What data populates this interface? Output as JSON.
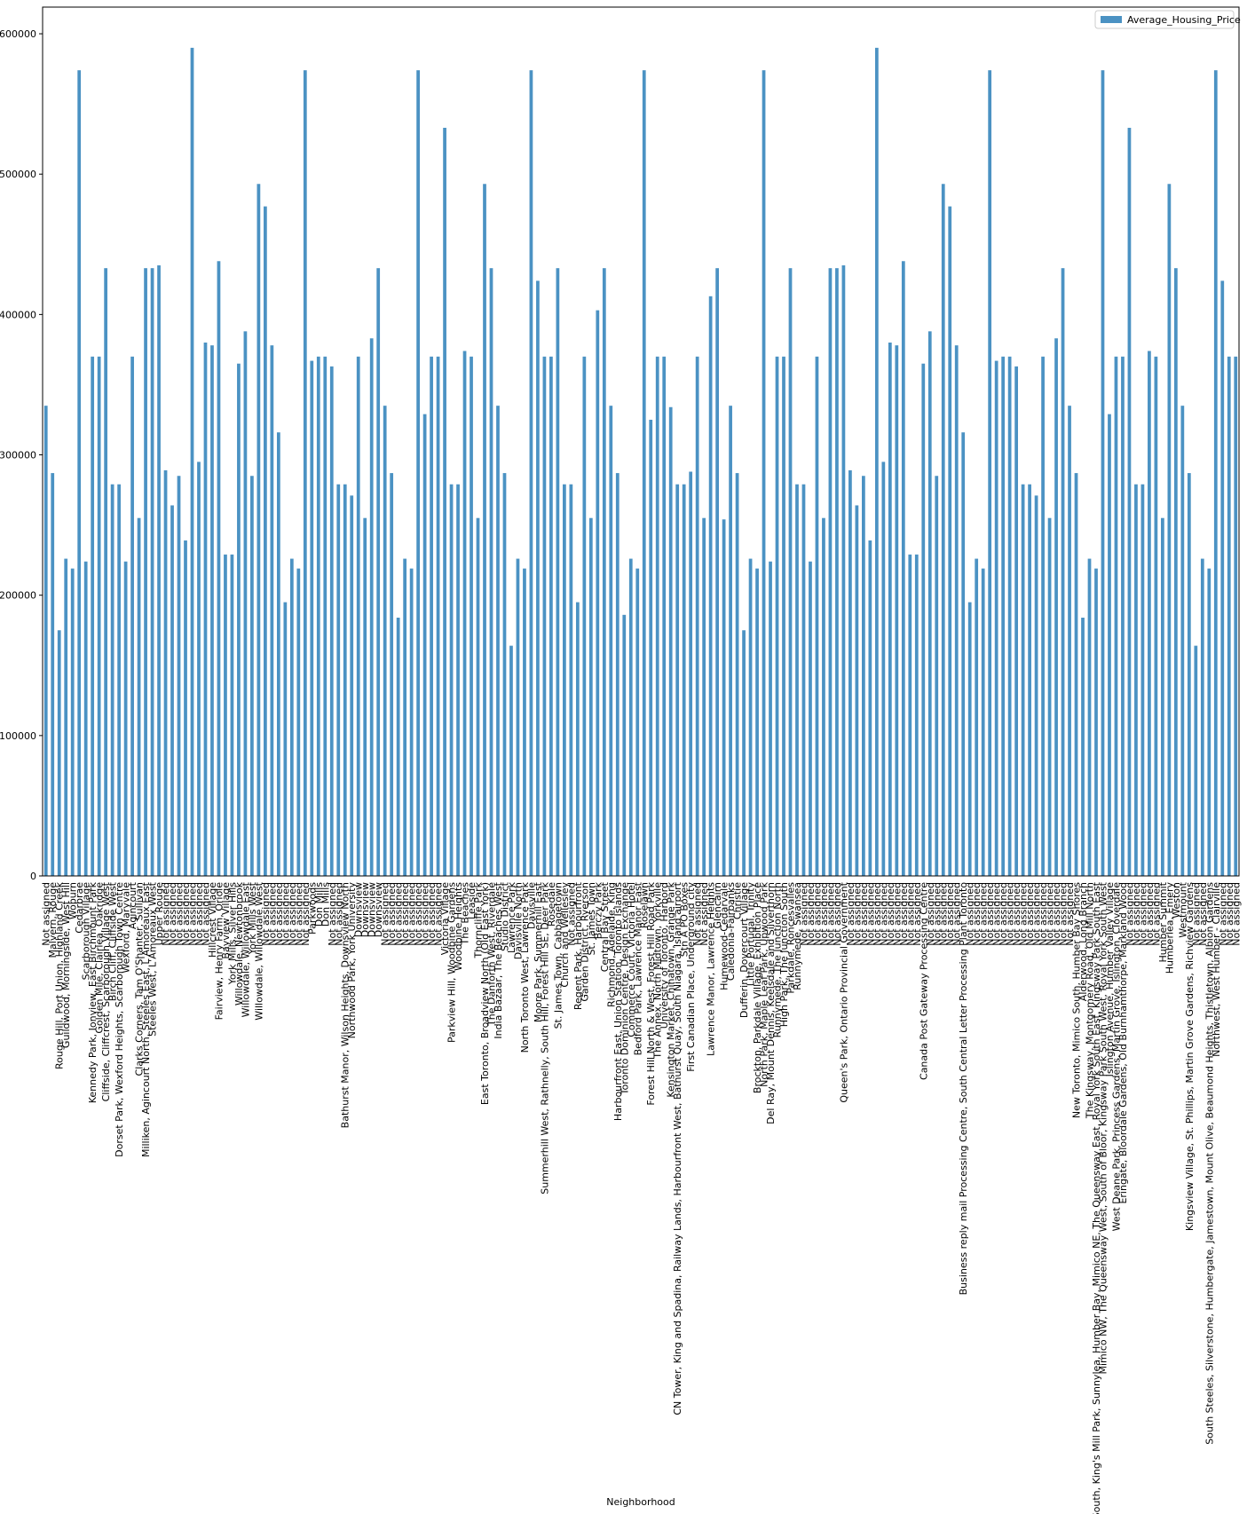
{
  "chart_data": {
    "type": "bar",
    "xlabel": "Neighborhood",
    "legend": "upper right",
    "series": [
      {
        "name": "Average_Housing_Price",
        "color": "#4b92c3",
        "values": [
          335000,
          287000,
          175000,
          226000,
          219000,
          574000,
          224000,
          370000,
          370000,
          433000,
          279000,
          279000,
          224000,
          370000,
          255000,
          433000,
          433000,
          435000,
          289000,
          264000,
          285000,
          239000,
          590000,
          295000,
          380000,
          378000,
          438000,
          229000,
          229000,
          365000,
          388000,
          285000,
          493000,
          477000,
          378000,
          316000,
          195000,
          226000,
          219000,
          574000,
          367000,
          370000,
          370000,
          363000,
          279000,
          279000,
          271000,
          370000,
          255000,
          383000,
          433000,
          335000,
          287000,
          184000,
          226000,
          219000,
          574000,
          329000,
          370000,
          370000,
          533000,
          279000,
          279000,
          374000,
          370000,
          255000,
          493000,
          433000,
          335000,
          287000,
          164000,
          226000,
          219000,
          574000,
          424000,
          370000,
          370000,
          433000,
          279000,
          279000,
          195000,
          370000,
          255000,
          403000,
          433000,
          335000,
          287000,
          186000,
          226000,
          219000,
          574000,
          325000,
          370000,
          370000,
          334000,
          279000,
          279000,
          288000,
          370000,
          255000,
          413000,
          433000,
          254000,
          335000,
          287000,
          175000,
          226000,
          219000,
          574000,
          224000,
          370000,
          370000,
          433000,
          279000,
          279000,
          224000,
          370000,
          255000,
          433000,
          433000,
          435000,
          289000,
          264000,
          285000,
          239000,
          590000,
          295000,
          380000,
          378000,
          438000,
          229000,
          229000,
          365000,
          388000,
          285000,
          493000,
          477000,
          378000,
          316000,
          195000,
          226000,
          219000,
          574000,
          367000,
          370000,
          370000,
          363000,
          279000,
          279000,
          271000,
          370000,
          255000,
          383000,
          433000,
          335000,
          287000,
          184000,
          226000,
          219000,
          574000,
          329000,
          370000,
          370000,
          533000,
          279000,
          279000,
          374000,
          370000,
          255000,
          493000,
          433000,
          335000,
          287000,
          164000,
          226000,
          219000,
          574000,
          424000,
          370000,
          370000
        ]
      }
    ],
    "categories": [
      "Not assigned",
      "Malvern, Rouge",
      "Rouge Hill, Port Union, Highland Creek",
      "Guildwood, Morningside, West Hill",
      "Woburn",
      "Cedarbrae",
      "Scarborough Village",
      "Kennedy Park, Ionview, East Birchmount Park",
      "Golden Mile, Clairlea, Oakridge",
      "Cliffside, Cliffcrest, Scarborough Village West",
      "Birch Cliff, Cliffside West",
      "Dorset Park, Wexford Heights, Scarborough Town Centre",
      "Wexford, Maryvale",
      "Agincourt",
      "Clarks Corners, Tam O'Shanter, Sullivan",
      "Milliken, Agincourt North, Steeles East, L'Amoreaux East",
      "Steeles West, L'Amoreaux West",
      "Upper Rouge",
      "Not assigned",
      "Not assigned",
      "Not assigned",
      "Not assigned",
      "Not assigned",
      "Not assigned",
      "Not assigned",
      "Hillcrest Village",
      "Fairview, Henry Farm, Oriole",
      "Bayview Village",
      "York Mills, Silver Hills",
      "Willowdale, Newtonbrook",
      "Willowdale, Willowdale East",
      "York Mills West",
      "Willowdale, Willowdale West",
      "Not assigned",
      "Not assigned",
      "Not assigned",
      "Not assigned",
      "Not assigned",
      "Not assigned",
      "Not assigned",
      "Parkwoods",
      "Don Mills",
      "Don Mills",
      "Not assigned",
      "Not assigned",
      "Bathurst Manor, Wilson Heights, Downsview North",
      "Northwood Park, York University",
      "Downsview",
      "Downsview",
      "Downsview",
      "Downsview",
      "Not assigned",
      "Not assigned",
      "Not assigned",
      "Not assigned",
      "Not assigned",
      "Not assigned",
      "Not assigned",
      "Not assigned",
      "Not assigned",
      "Victoria Village",
      "Parkview Hill, Woodbine Gardens",
      "Woodbine Heights",
      "The Beaches",
      "Leaside",
      "Thorncliffe Park",
      "East Toronto, Broadview North (Old East York)",
      "The Danforth West, Riverdale",
      "India Bazaar, The Beaches West",
      "Studio District",
      "Lawrence Park",
      "Davisville North",
      "North Toronto West, Lawrence Park",
      "Davisville",
      "Moore Park, Summerhill East",
      "Summerhill West, Rathnelly, South Hill, Forest Hill SE, Deer Park",
      "Rosedale",
      "St. James Town, Cabbagetown",
      "Church and Wellesley",
      "Not assigned",
      "Regent Park, Harbourfront",
      "Garden District, Ryerson",
      "St. James Town",
      "Berczy Park",
      "Central Bay Street",
      "Richmond, Adelaide, King",
      "Harbourfront East, Union Station, Toronto Islands",
      "Toronto Dominion Centre, Design Exchange",
      "Commerce Court, Victoria Hotel",
      "Bedford Park, Lawrence Manor East",
      "Roselawn",
      "Forest Hill North & West, Forest Hill Road Park",
      "The Annex, North Midtown, Yorkville",
      "University of Toronto, Harbord",
      "Kensington Market, Chinatown, Grange Park",
      "CN Tower, King and Spadina, Railway Lands, Harbourfront West, Bathurst Quay, South Niagara, Island airport",
      "Stn A PO Boxes",
      "First Canadian Place, Underground city",
      "Not assigned",
      "Not assigned",
      "Lawrence Manor, Lawrence Heights",
      "Glencairn",
      "Humewood-Cedarvale",
      "Caledonia-Fairbanks",
      "Christie",
      "Dufferin, Dovercourt Village",
      "Little Portugal, Trinity",
      "Brockton, Parkdale Village, Exhibition Place",
      "North Park, Maple Leaf Park, Upwood Park",
      "Del Ray, Mount Dennis, Keelsdale and Silverthorn",
      "Runnymede, The Junction North",
      "High Park, The Junction South",
      "Parkdale, Roncesvalles",
      "Runnymede, Swansea",
      "Not assigned",
      "Not assigned",
      "Not assigned",
      "Not assigned",
      "Not assigned",
      "Not assigned",
      "Queen's Park, Ontario Provincial Government",
      "Not assigned",
      "Not assigned",
      "Not assigned",
      "Not assigned",
      "Not assigned",
      "Not assigned",
      "Not assigned",
      "Not assigned",
      "Not assigned",
      "Not assigned",
      "Not assigned",
      "Canada Post Gateway Processing Centre",
      "Not assigned",
      "Not assigned",
      "Not assigned",
      "Not assigned",
      "Not assigned",
      "Business reply mail Processing Centre, South Central Letter Processing Plant Toronto",
      "Not assigned",
      "Not assigned",
      "Not assigned",
      "Not assigned",
      "Not assigned",
      "Not assigned",
      "Not assigned",
      "Not assigned",
      "Not assigned",
      "Not assigned",
      "Not assigned",
      "Not assigned",
      "Not assigned",
      "Not assigned",
      "Not assigned",
      "Not assigned",
      "New Toronto, Mimico South, Humber Bay Shores",
      "Alderwood, Long Branch",
      "The Kingsway, Montgomery Road, Old Mill North",
      "Old Mill South, King's Mill Park, Sunnylea, Humber Bay, Mimico NE, The Queensway East, Royal York South East, Kingsway Park South East",
      "Mimico NW, The Queensway West, South of Bloor, Kingsway Park South West, Royal York South West",
      "Islington Avenue, Humber Valley Village",
      "West Deane Park, Princess Gardens, Martin Grove, Islington, Cloverdale",
      "Eringate, Bloordale Gardens, Old Burnhamthorpe, Markland Wood",
      "Not assigned",
      "Not assigned",
      "Not assigned",
      "Not assigned",
      "Not assigned",
      "Humber Summit",
      "Humberlea, Emery",
      "Weston",
      "Westmount",
      "Kingsview Village, St. Phillips, Martin Grove Gardens, Richview Gardens",
      "Not assigned",
      "Not assigned",
      "South Steeles, Silverstone, Humbergate, Jamestown, Mount Olive, Beaumond Heights, Thistletown, Albion Gardens",
      "Northwest, West Humber - Clairville",
      "Not assigned",
      "Not assigned",
      "Not assigned"
    ],
    "ylim": [
      0,
      619000
    ],
    "yticks": [
      0,
      100000,
      200000,
      300000,
      400000,
      500000,
      600000
    ]
  }
}
